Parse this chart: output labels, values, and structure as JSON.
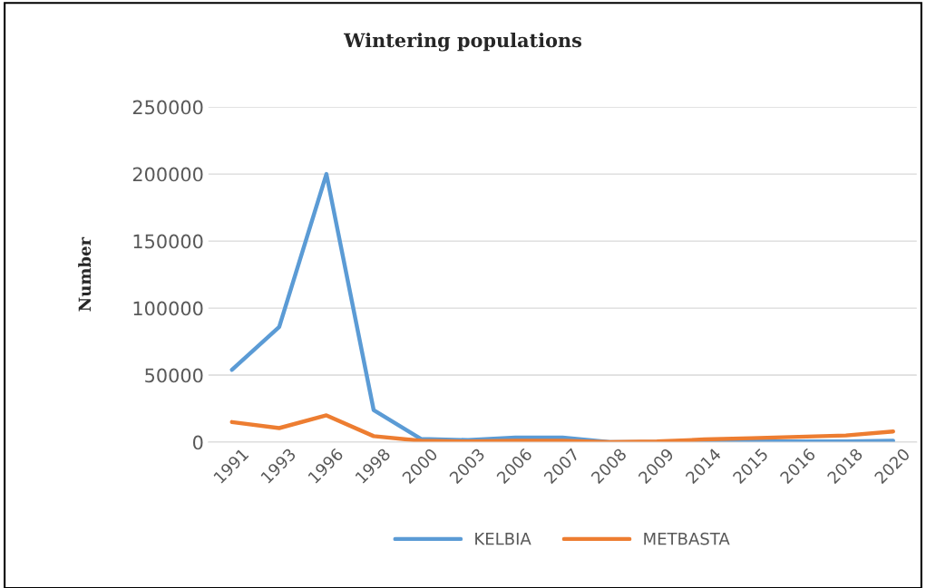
{
  "chart_data": {
    "type": "line",
    "title": "Wintering populations",
    "ylabel": "Number",
    "categories": [
      "1991",
      "1993",
      "1996",
      "1998",
      "2000",
      "2003",
      "2006",
      "2007",
      "2008",
      "2009",
      "2014",
      "2015",
      "2016",
      "2018",
      "2020"
    ],
    "series": [
      {
        "name": "KELBIA",
        "color": "#5b9bd5",
        "values": [
          54000,
          86000,
          200000,
          24000,
          2500,
          1500,
          3500,
          3500,
          0,
          0,
          500,
          500,
          500,
          500,
          1000
        ]
      },
      {
        "name": "METBASTA",
        "color": "#ed7d31",
        "values": [
          15000,
          10500,
          20000,
          4500,
          1000,
          500,
          1000,
          1000,
          0,
          500,
          2000,
          3000,
          4000,
          5000,
          8000
        ]
      }
    ],
    "ylim": [
      0,
      250000
    ],
    "yticks": [
      0,
      50000,
      100000,
      150000,
      200000,
      250000
    ],
    "grid": "y",
    "legend": "bottom",
    "marker": "none",
    "line_style": "solid"
  }
}
